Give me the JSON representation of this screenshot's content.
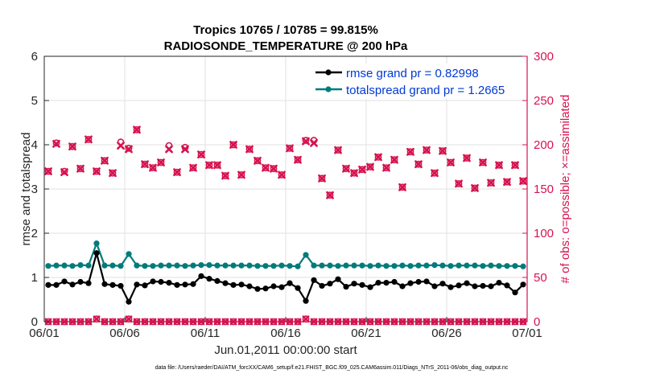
{
  "chart_data": {
    "type": "line",
    "title_line1": "Tropics 10765 / 10785 = 99.815%",
    "title_line2": "RADIOSONDE_TEMPERATURE @ 200 hPa",
    "xlabel": "Jun.01,2011 00:00:00 start",
    "ylabel_left": "rmse and totalspread",
    "ylabel_right": "# of obs: o=possible; ×=assimilated",
    "footnote": "data file: /Users/raeder/DAI/ATM_forcXX/CAM6_setup/f.e21.FHIST_BGC.f09_025.CAM6assim.011/Diags_NTrS_2011-06/obs_diag_output.nc",
    "x_range": [
      0,
      30
    ],
    "y_left_range": [
      0,
      6
    ],
    "y_right_range": [
      0,
      300
    ],
    "x_ticks": [
      {
        "x": 0,
        "label": "06/01"
      },
      {
        "x": 5,
        "label": "06/06"
      },
      {
        "x": 10,
        "label": "06/11"
      },
      {
        "x": 15,
        "label": "06/16"
      },
      {
        "x": 20,
        "label": "06/21"
      },
      {
        "x": 25,
        "label": "06/26"
      },
      {
        "x": 30,
        "label": "07/01"
      }
    ],
    "y_left_ticks": [
      "0",
      "1",
      "2",
      "3",
      "4",
      "5",
      "6"
    ],
    "y_right_ticks": [
      "0",
      "50",
      "100",
      "150",
      "200",
      "250",
      "300"
    ],
    "legend": [
      {
        "label": "rmse grand pr = 0.82998",
        "color": "#000000"
      },
      {
        "label": "totalspread grand pr = 1.2665",
        "color": "#007b7b"
      }
    ],
    "colors": {
      "rmse": "#000000",
      "totalspread": "#007b7b",
      "obs": "#d6134f",
      "legend_text": "#0039d6",
      "axis": "#262626",
      "grid": "#e2e2e2"
    },
    "x": [
      0.25,
      0.75,
      1.25,
      1.75,
      2.25,
      2.75,
      3.25,
      3.75,
      4.25,
      4.75,
      5.25,
      5.75,
      6.25,
      6.75,
      7.25,
      7.75,
      8.25,
      8.75,
      9.25,
      9.75,
      10.25,
      10.75,
      11.25,
      11.75,
      12.25,
      12.75,
      13.25,
      13.75,
      14.25,
      14.75,
      15.25,
      15.75,
      16.25,
      16.75,
      17.25,
      17.75,
      18.25,
      18.75,
      19.25,
      19.75,
      20.25,
      20.75,
      21.25,
      21.75,
      22.25,
      22.75,
      23.25,
      23.75,
      24.25,
      24.75,
      25.25,
      25.75,
      26.25,
      26.75,
      27.25,
      27.75,
      28.25,
      28.75,
      29.25,
      29.75
    ],
    "series": [
      {
        "name": "rmse",
        "axis": "left",
        "values": [
          0.83,
          0.83,
          0.91,
          0.84,
          0.9,
          0.87,
          1.55,
          0.85,
          0.83,
          0.81,
          0.45,
          0.84,
          0.82,
          0.91,
          0.9,
          0.88,
          0.83,
          0.84,
          0.85,
          1.03,
          0.97,
          0.92,
          0.87,
          0.83,
          0.84,
          0.8,
          0.74,
          0.75,
          0.8,
          0.78,
          0.87,
          0.76,
          0.47,
          0.94,
          0.81,
          0.86,
          0.96,
          0.79,
          0.86,
          0.83,
          0.78,
          0.88,
          0.88,
          0.9,
          0.8,
          0.87,
          0.9,
          0.91,
          0.8,
          0.86,
          0.78,
          0.82,
          0.87,
          0.8,
          0.81,
          0.8,
          0.88,
          0.82,
          0.66,
          0.84
        ]
      },
      {
        "name": "totalspread",
        "axis": "left",
        "values": [
          1.26,
          1.27,
          1.27,
          1.26,
          1.28,
          1.27,
          1.77,
          1.27,
          1.27,
          1.26,
          1.53,
          1.27,
          1.26,
          1.26,
          1.27,
          1.27,
          1.27,
          1.26,
          1.27,
          1.28,
          1.28,
          1.27,
          1.27,
          1.27,
          1.27,
          1.27,
          1.26,
          1.26,
          1.26,
          1.27,
          1.26,
          1.25,
          1.51,
          1.27,
          1.27,
          1.27,
          1.26,
          1.27,
          1.27,
          1.27,
          1.26,
          1.27,
          1.26,
          1.26,
          1.27,
          1.26,
          1.27,
          1.27,
          1.28,
          1.27,
          1.26,
          1.27,
          1.27,
          1.27,
          1.26,
          1.27,
          1.26,
          1.26,
          1.26,
          1.25
        ]
      },
      {
        "name": "obs_possible",
        "axis": "right",
        "values": [
          170,
          202,
          170,
          198,
          173,
          206,
          170,
          182,
          168,
          203,
          196,
          217,
          178,
          174,
          180,
          199,
          169,
          197,
          174,
          189,
          177,
          177,
          165,
          200,
          166,
          195,
          182,
          174,
          173,
          166,
          196,
          183,
          205,
          205,
          162,
          143,
          194,
          173,
          168,
          172,
          175,
          186,
          174,
          183,
          152,
          192,
          178,
          194,
          168,
          193,
          180,
          156,
          185,
          151,
          180,
          157,
          177,
          158,
          177,
          159
        ]
      },
      {
        "name": "obs_assimilated",
        "axis": "right",
        "values": [
          170,
          201,
          169,
          198,
          173,
          206,
          170,
          182,
          168,
          199,
          195,
          217,
          178,
          174,
          180,
          195,
          169,
          195,
          174,
          189,
          177,
          177,
          165,
          200,
          166,
          195,
          182,
          174,
          173,
          166,
          196,
          183,
          204,
          202,
          162,
          143,
          194,
          173,
          168,
          172,
          175,
          186,
          174,
          183,
          152,
          192,
          178,
          194,
          168,
          193,
          180,
          156,
          185,
          151,
          180,
          157,
          177,
          158,
          177,
          159
        ]
      },
      {
        "name": "obs_bottom_possible",
        "axis": "right",
        "values": [
          0,
          0,
          0,
          0,
          0,
          0,
          3,
          0,
          0,
          0,
          3,
          0,
          0,
          0,
          0,
          0,
          0,
          0,
          0,
          0,
          0,
          0,
          0,
          0,
          0,
          0,
          0,
          0,
          0,
          0,
          0,
          0,
          3,
          0,
          0,
          0,
          0,
          0,
          0,
          0,
          0,
          0,
          0,
          0,
          0,
          0,
          0,
          0,
          0,
          0,
          0,
          0,
          0,
          0,
          0,
          0,
          0,
          0,
          0,
          0
        ]
      }
    ]
  }
}
